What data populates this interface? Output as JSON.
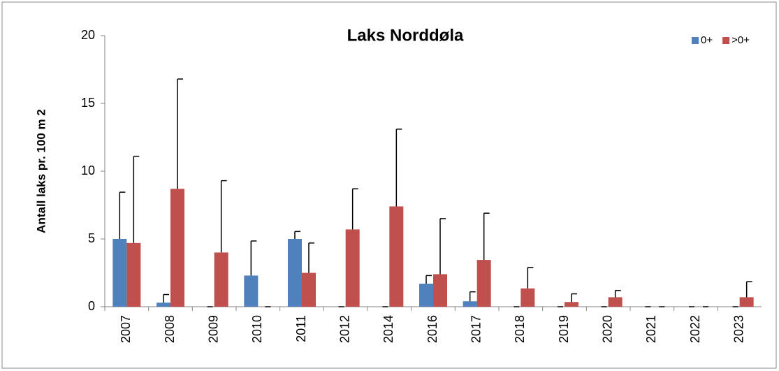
{
  "chart_data": {
    "type": "bar",
    "title": "Laks Norddøla",
    "y_label": "Antall laks pr. 100 m 2",
    "categories": [
      "2007",
      "2008",
      "2009",
      "2010",
      "2011",
      "2012",
      "2014",
      "2016",
      "2017",
      "2018",
      "2019",
      "2020",
      "2021",
      "2022",
      "2023"
    ],
    "series": [
      {
        "name": "0+",
        "color": "#4f81bd",
        "values": [
          5.0,
          0.3,
          0,
          2.3,
          5.0,
          0,
          0,
          1.7,
          0.4,
          0,
          0,
          0,
          0,
          0,
          0
        ],
        "errors": [
          3.45,
          0.6,
          0,
          2.55,
          0.55,
          0,
          0,
          0.6,
          0.7,
          0,
          0,
          0,
          0,
          0,
          0
        ]
      },
      {
        "name": ">0+",
        "color": "#c0504d",
        "values": [
          4.7,
          8.7,
          4.0,
          0,
          2.5,
          5.7,
          7.4,
          2.4,
          3.45,
          1.35,
          0.35,
          0.7,
          0,
          0,
          0.7
        ],
        "errors": [
          6.4,
          8.1,
          5.3,
          0,
          2.2,
          3.0,
          5.7,
          4.1,
          3.45,
          1.55,
          0.6,
          0.5,
          0,
          0,
          1.15
        ]
      }
    ],
    "ylim": [
      0,
      20
    ],
    "yticks": [
      0,
      5,
      10,
      15,
      20
    ],
    "legend": "top-right"
  }
}
